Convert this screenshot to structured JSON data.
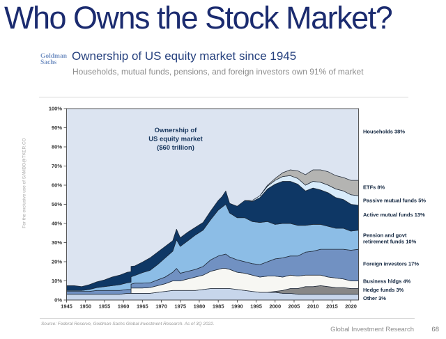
{
  "slide": {
    "title": "Who Owns the Stock Market?",
    "watermark": "For the exclusive use of SAMBO@TKER.CO",
    "source_note": "Source: Federal Reserve, Goldman Sachs Global Investment Research. As of 3Q 2022.",
    "footer_right": "Global Investment Research",
    "page_number": "68"
  },
  "header": {
    "logo_line1": "Goldman",
    "logo_line2": "Sachs",
    "title": "Ownership of US equity market since 1945",
    "subtitle": "Households, mutual funds, pensions, and foreign investors own 91% of market"
  },
  "colors": {
    "title_navy": "#1b2b6f",
    "header_blue": "#26417e",
    "logo_blue": "#7b97c6",
    "annotation_navy": "#17365d",
    "label_navy": "#10243e",
    "axis_text": "#333333",
    "band_stroke": "#1f2937",
    "plot_frame": "#4a4a4a",
    "households_bg": "#dce4f1"
  },
  "chart_data": {
    "type": "area",
    "stacked": true,
    "title_annotation": [
      "Ownership of",
      "US equity market",
      "($60 trillion)"
    ],
    "ylim": [
      0,
      100
    ],
    "xlim": [
      1945,
      2022
    ],
    "grid": false,
    "legend_position": "right-labels",
    "y_ticks": [
      0,
      10,
      20,
      30,
      40,
      50,
      60,
      70,
      80,
      90,
      100
    ],
    "x_ticks": [
      1945,
      1950,
      1955,
      1960,
      1965,
      1970,
      1975,
      1980,
      1985,
      1990,
      1995,
      2000,
      2005,
      2010,
      2015,
      2020
    ],
    "x": [
      1945,
      1947,
      1949,
      1951,
      1953,
      1955,
      1957,
      1959,
      1961,
      1962,
      1962,
      1963,
      1965,
      1967,
      1969,
      1971,
      1973,
      1974,
      1975,
      1977,
      1979,
      1981,
      1983,
      1985,
      1986,
      1987,
      1988,
      1990,
      1992,
      1994,
      1996,
      1998,
      2000,
      2002,
      2004,
      2006,
      2008,
      2010,
      2012,
      2014,
      2016,
      2018,
      2020,
      2022
    ],
    "background_series": {
      "name": "Households",
      "share_now": 38,
      "color": "#dce4f1"
    },
    "series": [
      {
        "name": "Other",
        "share_now": 3,
        "color": "#c7d6eb",
        "values": [
          3,
          3,
          3,
          3,
          3,
          3,
          3,
          3,
          3.5,
          3.5,
          3.5,
          3.5,
          3.5,
          3.5,
          4,
          4.5,
          5,
          5,
          5,
          5,
          5,
          5.5,
          6,
          6,
          6,
          6,
          6,
          5.5,
          5,
          4.5,
          4,
          4,
          4,
          3.5,
          3.5,
          3,
          3,
          3,
          3,
          3,
          3,
          3,
          3,
          3
        ]
      },
      {
        "name": "Hedge funds",
        "share_now": 3,
        "color": "#878787",
        "values": [
          0,
          0,
          0,
          0,
          0,
          0,
          0,
          0,
          0,
          0,
          0,
          0,
          0,
          0,
          0,
          0,
          0,
          0,
          0,
          0,
          0,
          0,
          0,
          0,
          0,
          0,
          0,
          0,
          0,
          0,
          0,
          0,
          0.5,
          1.5,
          2.5,
          3,
          4,
          4,
          4.5,
          4,
          3.5,
          3.5,
          3,
          3
        ]
      },
      {
        "name": "Business hldgs",
        "share_now": 4,
        "color": "#f7f7f3",
        "values": [
          0,
          0,
          0,
          0,
          0,
          0,
          0,
          0,
          0,
          0,
          2.8,
          2.8,
          2.8,
          3,
          3.5,
          4,
          5,
          5,
          5,
          6,
          7,
          7.5,
          9,
          10,
          10.5,
          10.5,
          10,
          9,
          9,
          8.5,
          8,
          8.5,
          8,
          7,
          7,
          6.5,
          6,
          6,
          5.5,
          5,
          5,
          4.5,
          4,
          4
        ]
      },
      {
        "name": "Foreign investors",
        "share_now": 17,
        "color": "#7191c2",
        "values": [
          1.5,
          1.5,
          1.5,
          1.5,
          2,
          2,
          2,
          2,
          2,
          2,
          2,
          2.5,
          2.5,
          2.5,
          3,
          3.5,
          4.5,
          6.5,
          4,
          4,
          4,
          4.5,
          6,
          7,
          7,
          7.5,
          6.5,
          6.5,
          6,
          6,
          6.5,
          7.5,
          9,
          10,
          10,
          10.5,
          12,
          12.5,
          13.5,
          14.5,
          15,
          15.5,
          16,
          16.5
        ]
      },
      {
        "name": "Pension and govt retirement funds",
        "share_now": 10,
        "color": "#8cbde6",
        "values": [
          0.5,
          0.5,
          0.5,
          1,
          1.5,
          2,
          2.5,
          3,
          3.5,
          3.8,
          3.8,
          4,
          5.5,
          6.5,
          8,
          10,
          11,
          15,
          14,
          16,
          18,
          19,
          21,
          24,
          25,
          26,
          23,
          22,
          23,
          22,
          22,
          21,
          18,
          18,
          17,
          16,
          14,
          14,
          13,
          12,
          11,
          11,
          10,
          10
        ]
      },
      {
        "name": "Active mutual funds",
        "share_now": 13,
        "color": "#0e3765",
        "values": [
          2.5,
          2.5,
          2,
          2.5,
          3,
          3.5,
          4.5,
          5,
          5.5,
          5.5,
          5.5,
          5,
          5.5,
          6.5,
          6.5,
          6,
          5.5,
          5.5,
          4.5,
          4.5,
          4,
          4,
          4.5,
          5,
          5.5,
          7,
          5,
          6,
          9,
          10.5,
          13,
          17,
          21,
          22,
          22,
          21.5,
          18,
          19,
          18,
          17.5,
          16,
          15,
          14,
          13
        ]
      },
      {
        "name": "Passive mutual funds",
        "share_now": 5,
        "color": "#d8ebfa",
        "values": [
          0,
          0,
          0,
          0,
          0,
          0,
          0,
          0,
          0,
          0,
          0,
          0,
          0,
          0,
          0,
          0,
          0,
          0,
          0,
          0,
          0,
          0,
          0,
          0,
          0,
          0,
          0,
          0,
          0,
          0.5,
          1,
          1.5,
          2,
          2.5,
          3,
          3,
          3,
          3.5,
          4,
          4,
          4.5,
          4.5,
          5,
          5
        ]
      },
      {
        "name": "ETFs",
        "share_now": 8,
        "color": "#b4b4b2",
        "values": [
          0,
          0,
          0,
          0,
          0,
          0,
          0,
          0,
          0,
          0,
          0,
          0,
          0,
          0,
          0,
          0,
          0,
          0,
          0,
          0,
          0,
          0,
          0,
          0,
          0,
          0,
          0,
          0,
          0,
          0,
          0,
          0.5,
          1,
          2,
          3,
          4,
          5.5,
          6,
          6.5,
          7,
          7,
          7,
          7.5,
          8
        ]
      }
    ],
    "right_labels": [
      {
        "text": "Households 38%",
        "y_pct": 88
      },
      {
        "text": "ETFs 8%",
        "y_pct": 59
      },
      {
        "text": "Passive mutual funds 5%",
        "y_pct": 52
      },
      {
        "text": "Active mutual funds 13%",
        "y_pct": 44.5
      },
      {
        "text": "Pension and govt\nretirement funds 10%",
        "y_pct": 32
      },
      {
        "text": "Foreign investors 17%",
        "y_pct": 19
      },
      {
        "text": "Business hldgs 4%",
        "y_pct": 9.8
      },
      {
        "text": "Hedge funds 3%",
        "y_pct": 5.3
      },
      {
        "text": "Other 3%",
        "y_pct": 1
      }
    ]
  }
}
